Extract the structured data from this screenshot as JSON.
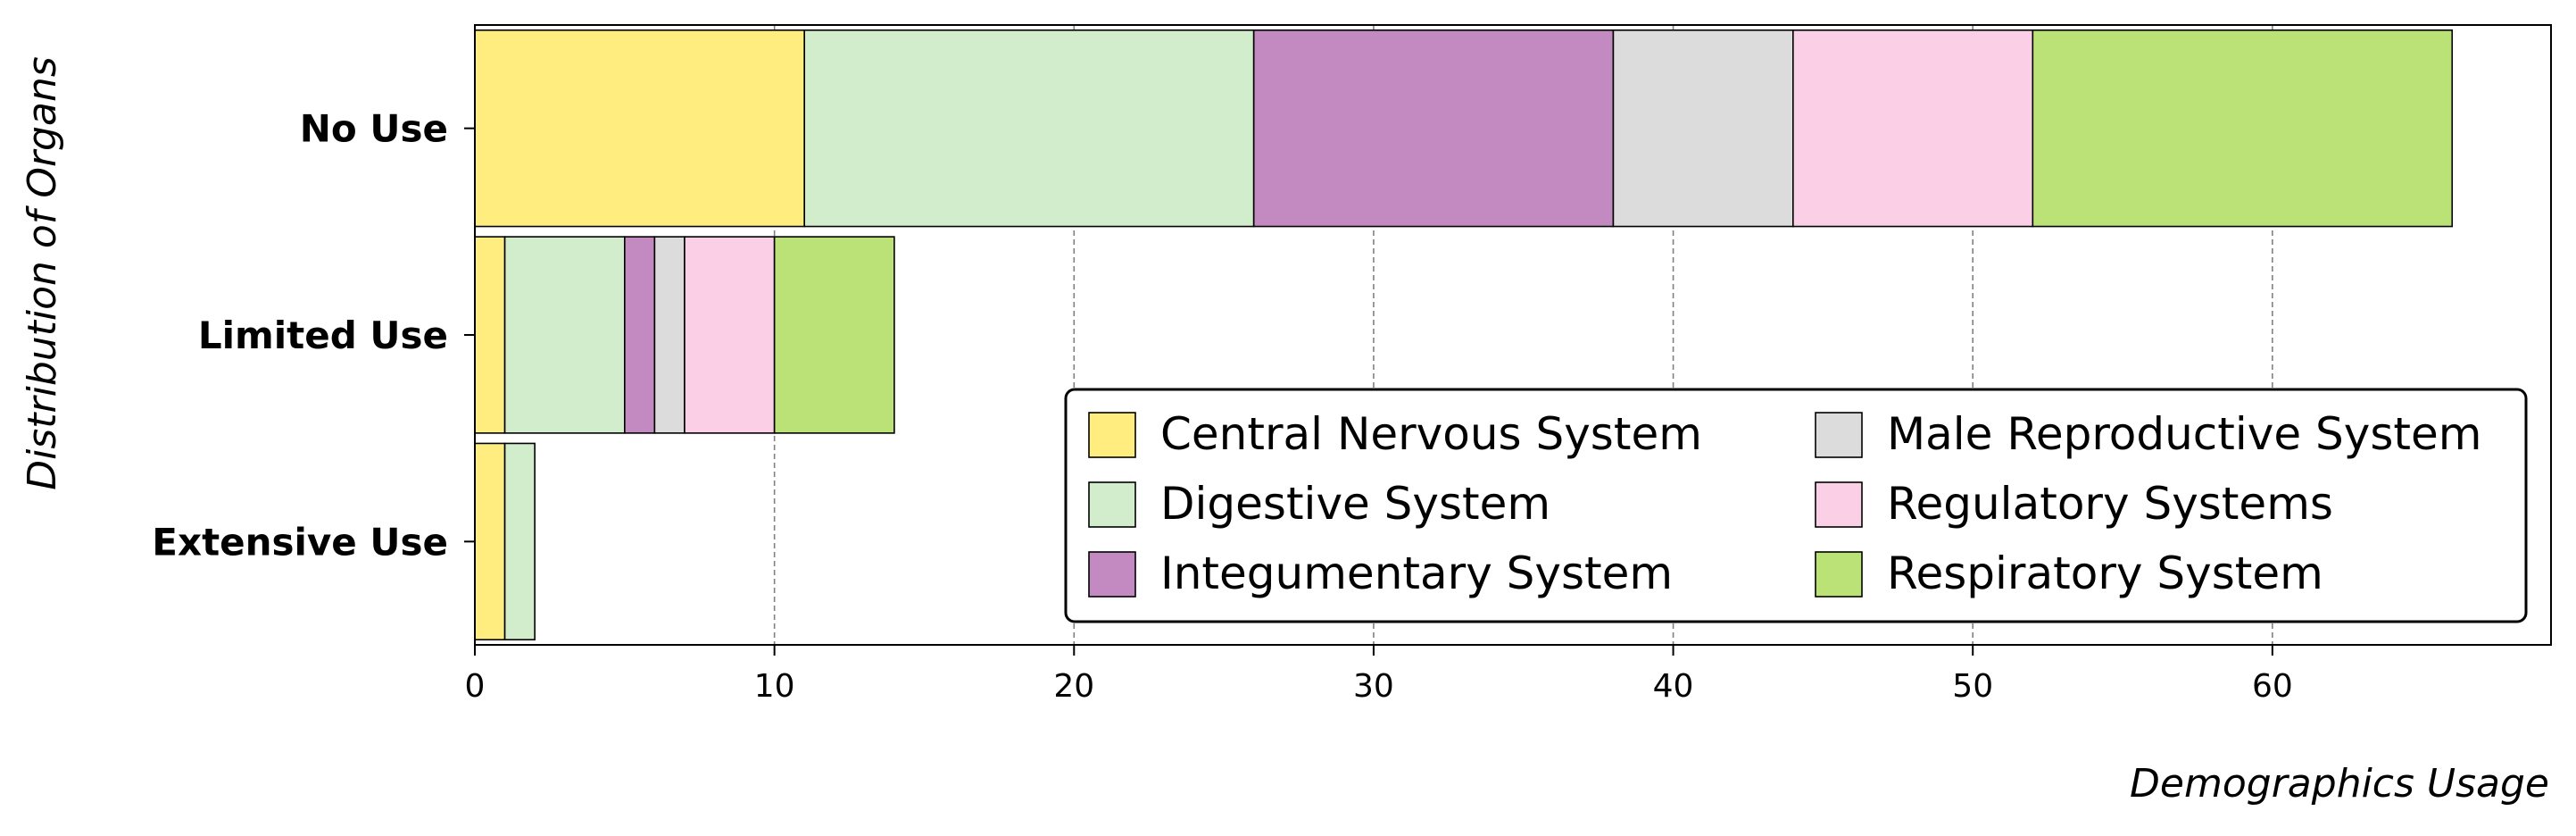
{
  "chart_data": {
    "type": "bar",
    "orientation": "horizontal",
    "stacked": true,
    "categories": [
      "No Use",
      "Limited Use",
      "Extensive Use"
    ],
    "series": [
      {
        "name": "Central Nervous System",
        "values": [
          11,
          1,
          1
        ],
        "color": "#FFED80"
      },
      {
        "name": "Digestive System",
        "values": [
          15,
          4,
          1
        ],
        "color": "#D2EDCB"
      },
      {
        "name": "Integumentary System",
        "values": [
          12,
          1,
          0
        ],
        "color": "#C28AC1"
      },
      {
        "name": "Male Reproductive System",
        "values": [
          6,
          1,
          0
        ],
        "color": "#DCDCDC"
      },
      {
        "name": "Regulatory Systems",
        "values": [
          8,
          3,
          0
        ],
        "color": "#FBD0E6"
      },
      {
        "name": "Respiratory System",
        "values": [
          14,
          4,
          0
        ],
        "color": "#BBE277"
      }
    ],
    "xlabel": "Demographics Usage",
    "ylabel": "Distribution of Organs",
    "xlim": [
      0,
      69.3
    ],
    "xticks": [
      0,
      10,
      20,
      30,
      40,
      50,
      60
    ],
    "grid": "x-axis dashed",
    "legend": {
      "placement": "lower-right",
      "columns": 2
    }
  }
}
